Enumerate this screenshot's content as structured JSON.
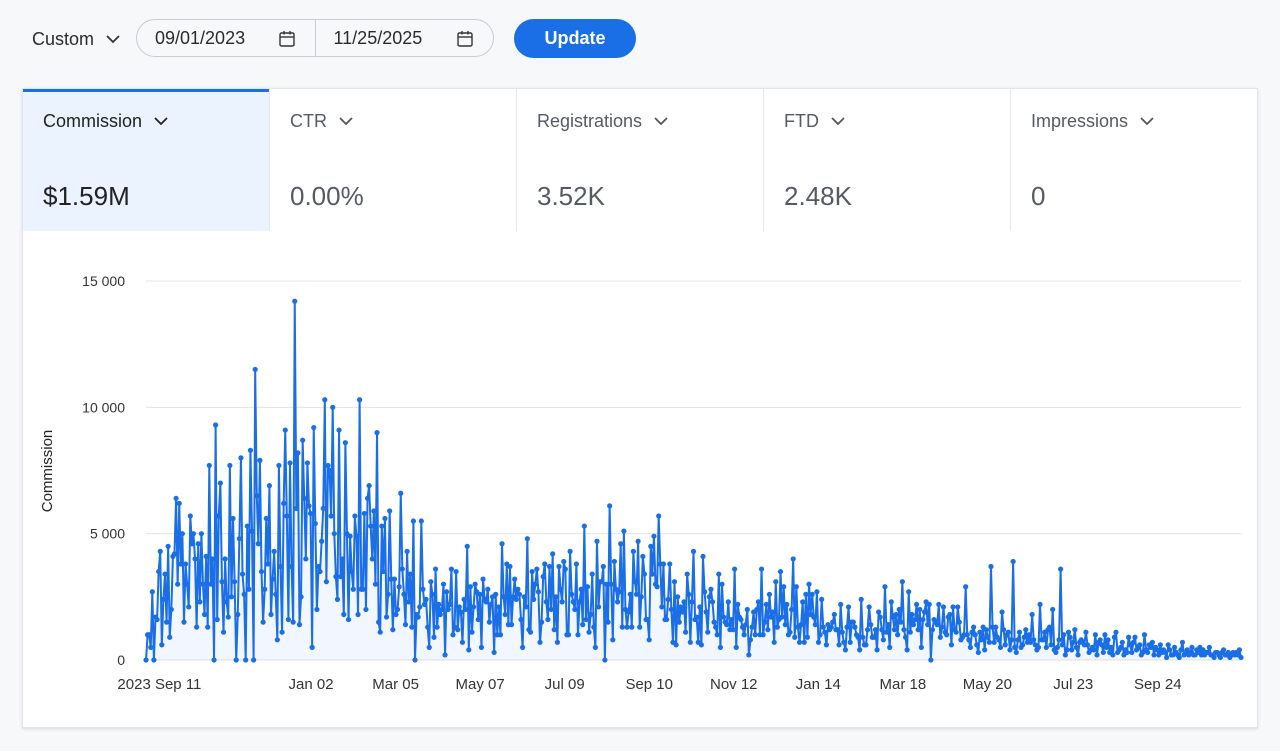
{
  "toolbar": {
    "range_label": "Custom",
    "start_date": "09/01/2023",
    "end_date": "11/25/2025",
    "update_label": "Update",
    "icons": {
      "chevron": "chevron-down-icon",
      "calendar": "calendar-icon"
    }
  },
  "metrics": [
    {
      "label": "Commission",
      "value": "$1.59M",
      "active": true
    },
    {
      "label": "CTR",
      "value": "0.00%",
      "active": false
    },
    {
      "label": "Registrations",
      "value": "3.52K",
      "active": false
    },
    {
      "label": "FTD",
      "value": "2.48K",
      "active": false
    },
    {
      "label": "Impressions",
      "value": "0",
      "active": false
    }
  ],
  "colors": {
    "accent": "#1a6ee6",
    "series": "#1a6ee6",
    "active_tab_bg": "#eaf3ff"
  },
  "chart_data": {
    "type": "line",
    "ylabel": "Commission",
    "ylim": [
      0,
      15000
    ],
    "yticks": [
      0,
      5000,
      10000,
      15000
    ],
    "ytick_labels": [
      "0",
      "5 000",
      "10 000",
      "15 000"
    ],
    "x_start": "2023-09-01",
    "x_end": "2025-11-25",
    "xtick_dates": [
      "2023-09-11",
      "2024-01-02",
      "2024-03-05",
      "2024-05-07",
      "2024-07-09",
      "2024-09-10",
      "2024-11-12",
      "2025-01-14",
      "2025-03-18",
      "2025-05-20",
      "2025-07-23",
      "2025-09-24"
    ],
    "xtick_labels": [
      "2023 Sep 11",
      "Jan 02",
      "Mar 05",
      "May 07",
      "Jul 09",
      "Sep 10",
      "Nov 12",
      "Jan 14",
      "Mar 18",
      "May 20",
      "Jul 23",
      "Sep 24"
    ],
    "grid": true,
    "legend": "none",
    "series": [
      {
        "values": [
          0,
          1000,
          1000,
          500,
          2700,
          0,
          1700,
          1600,
          3500,
          4300,
          600,
          2400,
          3400,
          1500,
          4500,
          900,
          2000,
          4100,
          4200,
          6400,
          3000,
          6200,
          3800,
          5000,
          1500,
          3800,
          3000,
          2100,
          5700,
          4600,
          5000,
          4000,
          1300,
          4600,
          2300,
          5000,
          3000,
          1800,
          4100,
          1300,
          7700,
          3000,
          4000,
          0,
          9300,
          1600,
          5700,
          7000,
          3100,
          1100,
          4000,
          2300,
          1700,
          7700,
          2500,
          5600,
          3100,
          0,
          1800,
          4800,
          8000,
          3400,
          2600,
          0,
          5300,
          2800,
          8300,
          5100,
          0,
          11500,
          6500,
          4600,
          7900,
          3500,
          1500,
          2800,
          5600,
          3800,
          6900,
          1800,
          3200,
          4300,
          2600,
          800,
          7700,
          3700,
          1100,
          6200,
          9100,
          5700,
          1600,
          7800,
          3700,
          1500,
          14200,
          6000,
          8200,
          1400,
          2500,
          8700,
          6400,
          4000,
          7800,
          6100,
          5800,
          500,
          9200,
          5400,
          2000,
          3700,
          3500,
          4700,
          6000,
          10300,
          3100,
          7700,
          7500,
          5700,
          10000,
          5000,
          3300,
          2400,
          9100,
          3300,
          4000,
          1800,
          8600,
          5000,
          1600,
          4900,
          3500,
          2800,
          5700,
          4900,
          1800,
          10300,
          2800,
          2800,
          5800,
          2000,
          6400,
          6900,
          5300,
          4000,
          5900,
          3000,
          9000,
          1500,
          1100,
          5300,
          3500,
          5600,
          1700,
          2600,
          5900,
          3200,
          1200,
          3200,
          1800,
          2000,
          2900,
          6600,
          3600,
          2600,
          1400,
          4300,
          2300,
          3400,
          1300,
          5500,
          0,
          1800,
          1700,
          2100,
          5500,
          2800,
          2200,
          2400,
          1300,
          500,
          3100,
          2600,
          900,
          3600,
          1300,
          2200,
          1800,
          2000,
          3000,
          200,
          2700,
          2000,
          2200,
          3600,
          1000,
          1300,
          3500,
          1200,
          2100,
          1900,
          700,
          2400,
          2000,
          4500,
          400,
          2900,
          1100,
          2100,
          3000,
          2700,
          1600,
          2600,
          500,
          3200,
          2400,
          2300,
          2800,
          1500,
          2200,
          2500,
          300,
          2600,
          1000,
          2100,
          1000,
          4600,
          2500,
          1800,
          3800,
          1400,
          3700,
          1400,
          2500,
          3200,
          2400,
          2800,
          2600,
          1600,
          500,
          2500,
          2100,
          4800,
          1200,
          1100,
          3500,
          2400,
          3000,
          3600,
          2700,
          700,
          1500,
          3300,
          3800,
          2300,
          1600,
          3700,
          2000,
          4200,
          1200,
          2500,
          700,
          3700,
          2800,
          2300,
          3900,
          3600,
          1000,
          1000,
          4300,
          2600,
          2300,
          2000,
          3800,
          1000,
          2300,
          2800,
          1400,
          5300,
          1600,
          2900,
          1100,
          1800,
          3400,
          1300,
          500,
          4700,
          2100,
          3100,
          3100,
          3700,
          0,
          3000,
          1500,
          6100,
          3000,
          800,
          3900,
          2800,
          2300,
          2700,
          4600,
          1300,
          5100,
          2000,
          1300,
          1900,
          2600,
          1300,
          4300,
          3100,
          2600,
          4700,
          1300,
          2500,
          4100,
          3400,
          1600,
          1600,
          800,
          4500,
          3400,
          4900,
          3000,
          2900,
          5700,
          3800,
          2100,
          3800,
          1600,
          1600,
          2400,
          3800,
          2000,
          700,
          3100,
          600,
          2500,
          1500,
          2100,
          1900,
          2300,
          1100,
          3400,
          2600,
          700,
          2300,
          4300,
          1600,
          1700,
          700,
          2100,
          600,
          4100,
          2700,
          1900,
          1100,
          2500,
          2800,
          2300,
          1500,
          1300,
          1000,
          3400,
          500,
          3000,
          1700,
          1500,
          1400,
          2300,
          1200,
          1600,
          1200,
          3600,
          500,
          2200,
          1700,
          1600,
          1300,
          1000,
          1400,
          2000,
          200,
          800,
          1300,
          1900,
          1000,
          2000,
          2300,
          1000,
          3600,
          1000,
          1500,
          2200,
          1200,
          2600,
          1700,
          1900,
          700,
          3100,
          1300,
          1600,
          3500,
          1700,
          2900,
          1400,
          2200,
          1000,
          1100,
          2000,
          4000,
          900,
          2900,
          1300,
          700,
          1400,
          2300,
          700,
          2600,
          900,
          3000,
          1800,
          2600,
          1700,
          1400,
          2700,
          700,
          1000,
          2400,
          1300,
          1100,
          600,
          1400,
          1200,
          1300,
          1500,
          1800,
          1200,
          1200,
          600,
          2200,
          1100,
          700,
          400,
          1300,
          2100,
          700,
          1500,
          1500,
          1300,
          1000,
          900,
          400,
          2400,
          900,
          600,
          600,
          1200,
          2100,
          1400,
          900,
          900,
          1200,
          400,
          1900,
          1700,
          1200,
          800,
          2900,
          1100,
          1400,
          500,
          2300,
          1700,
          1200,
          1800,
          1000,
          2000,
          1500,
          3100,
          1200,
          900,
          400,
          2700,
          1100,
          1800,
          1400,
          1600,
          2200,
          1200,
          2000,
          500,
          1600,
          1900,
          2300,
          1400,
          2200,
          0,
          1200,
          1600,
          1500,
          1400,
          2200,
          900,
          1300,
          2100,
          1100,
          1000,
          1700,
          1800,
          600,
          2100,
          1200,
          1100,
          2100,
          1500,
          800,
          900,
          1000,
          2900,
          1000,
          800,
          500,
          1100,
          1300,
          1000,
          600,
          300,
          1100,
          800,
          1300,
          400,
          1200,
          900,
          700,
          3700,
          1300,
          700,
          1300,
          900,
          800,
          500,
          1900,
          1200,
          600,
          1000,
          1100,
          400,
          800,
          3900,
          500,
          300,
          800,
          1100,
          500,
          600,
          900,
          1200,
          700,
          1000,
          700,
          1800,
          800,
          600,
          400,
          500,
          2200,
          800,
          800,
          1100,
          500,
          1200,
          1300,
          600,
          2000,
          400,
          300,
          500,
          800,
          3600,
          600,
          1000,
          200,
          400,
          1100,
          900,
          400,
          700,
          1200,
          500,
          200,
          700,
          800,
          700,
          600,
          1100,
          600,
          300,
          400,
          500,
          400,
          1000,
          200,
          700,
          800,
          600,
          300,
          1000,
          500,
          800,
          300,
          500,
          200,
          900,
          1100,
          300,
          400,
          500,
          700,
          200,
          400,
          300,
          900,
          600,
          300,
          700,
          900,
          400,
          500,
          600,
          200,
          300,
          1000,
          400,
          300,
          600,
          500,
          700,
          200,
          500,
          400,
          200,
          600,
          300,
          400,
          300,
          100,
          600,
          400,
          200,
          200,
          500,
          300,
          200,
          100,
          400,
          700,
          200,
          300,
          400,
          200,
          300,
          500,
          200,
          200,
          400,
          300,
          500,
          200,
          400,
          200,
          300,
          300,
          500,
          200,
          200,
          100,
          300,
          300,
          200,
          100,
          300,
          400,
          200,
          200,
          300,
          100,
          200,
          300,
          200,
          300,
          200,
          400,
          100
        ]
      }
    ]
  }
}
